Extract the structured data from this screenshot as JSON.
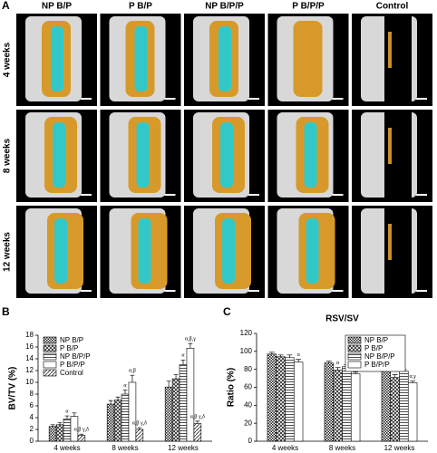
{
  "panel_a": {
    "panel": "A",
    "columns": [
      "NP B/P",
      "P B/P",
      "NP B/P/P",
      "P B/P/P",
      "Control"
    ],
    "rows": [
      "4 weeks",
      "8 weeks",
      "12 weeks"
    ]
  },
  "chart_data": [
    {
      "type": "bar",
      "panel": "B",
      "ylabel": "BV/TV (%)",
      "categories": [
        "4 weeks",
        "8 weeks",
        "12 weeks"
      ],
      "ylim": [
        0,
        18
      ],
      "yticks": [
        0,
        2,
        4,
        6,
        8,
        10,
        12,
        14,
        16,
        18
      ],
      "legend": "upper left",
      "series": [
        {
          "name": "NP B/P",
          "pattern": "checker",
          "values": [
            2.5,
            6.3,
            9.2
          ],
          "errors": [
            0.3,
            0.6,
            1.0
          ],
          "sig_labels": [
            null,
            null,
            null
          ]
        },
        {
          "name": "P B/P",
          "pattern": "crosshatch",
          "values": [
            2.8,
            7.0,
            10.6
          ],
          "errors": [
            0.4,
            0.5,
            0.7
          ],
          "sig_labels": [
            null,
            null,
            null
          ]
        },
        {
          "name": "NP B/P/P",
          "pattern": "hlines",
          "values": [
            3.8,
            8.0,
            13.0
          ],
          "errors": [
            0.5,
            0.7,
            0.8
          ],
          "sig_labels": [
            "α",
            "α",
            "α"
          ]
        },
        {
          "name": "P B/P/P",
          "pattern": "none",
          "values": [
            4.2,
            10.0,
            15.8
          ],
          "errors": [
            0.6,
            1.2,
            0.8
          ],
          "sig_labels": [
            null,
            "α,β",
            "α,β,γ"
          ]
        },
        {
          "name": "Control",
          "pattern": "diag",
          "values": [
            1.0,
            2.0,
            3.0
          ],
          "errors": [
            0.2,
            0.3,
            0.4
          ],
          "sig_labels": [
            "α,β γ,δ",
            "α,β γ,δ",
            "α,β γ,δ"
          ]
        }
      ]
    },
    {
      "type": "bar",
      "panel": "C",
      "title": "RSV/SV",
      "ylabel": "Ratio (%)",
      "categories": [
        "4 weeks",
        "8 weeks",
        "12 weeks"
      ],
      "ylim": [
        0,
        120
      ],
      "yticks": [
        0,
        20,
        40,
        60,
        80,
        100,
        120
      ],
      "legend": "upper right",
      "series": [
        {
          "name": "NP B/P",
          "pattern": "checker",
          "values": [
            97,
            87,
            80
          ],
          "errors": [
            2,
            2,
            2
          ],
          "sig_labels": [
            null,
            null,
            null
          ]
        },
        {
          "name": "P B/P",
          "pattern": "crosshatch",
          "values": [
            94,
            79,
            71
          ],
          "errors": [
            2,
            3,
            3
          ],
          "sig_labels": [
            null,
            "α",
            "α"
          ]
        },
        {
          "name": "NP B/P/P",
          "pattern": "hlines",
          "values": [
            93,
            83,
            78
          ],
          "errors": [
            3,
            2,
            2
          ],
          "sig_labels": [
            null,
            null,
            null
          ]
        },
        {
          "name": "P B/P/P",
          "pattern": "none",
          "values": [
            88,
            75,
            65
          ],
          "errors": [
            3,
            2,
            2
          ],
          "sig_labels": [
            "α",
            "α,γ",
            "α,γ"
          ]
        }
      ]
    }
  ]
}
